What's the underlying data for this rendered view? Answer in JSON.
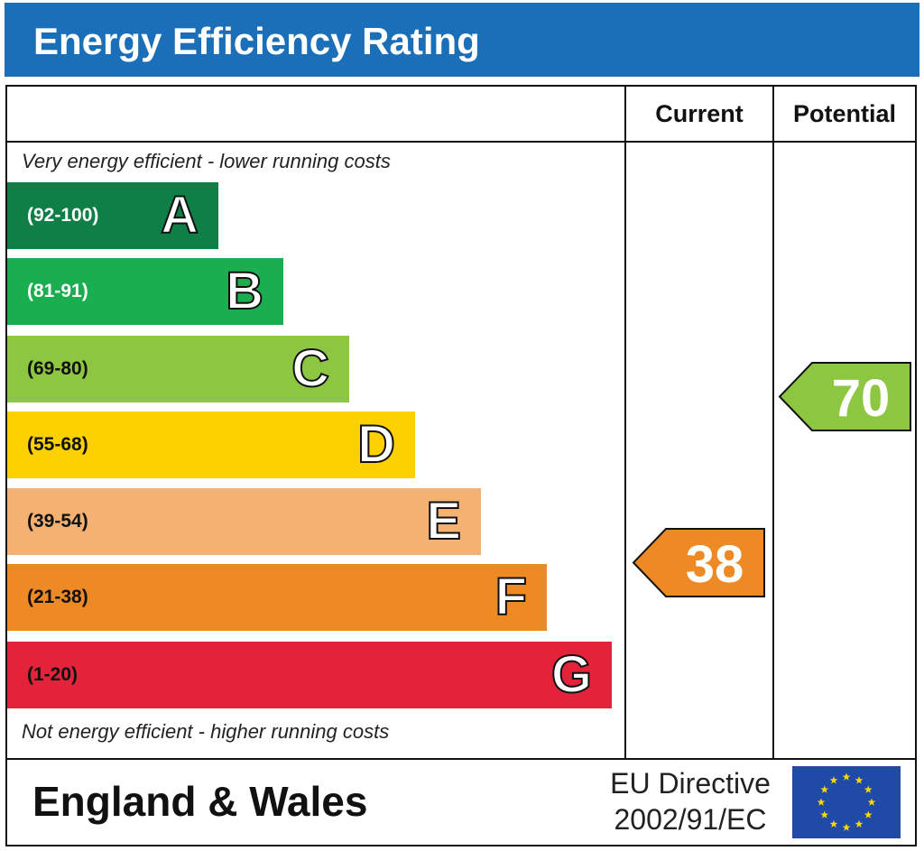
{
  "header": {
    "title": "Energy Efficiency Rating"
  },
  "columns": {
    "current": "Current",
    "potential": "Potential"
  },
  "notes": {
    "top": "Very energy efficient - lower running costs",
    "bottom": "Not energy efficient - higher running costs"
  },
  "footer": {
    "region": "England & Wales",
    "directive_line1": "EU Directive",
    "directive_line2": "2002/91/EC",
    "flag_icon": "eu-flag-icon"
  },
  "chart_data": {
    "type": "bar",
    "categories": [
      "A",
      "B",
      "C",
      "D",
      "E",
      "F",
      "G"
    ],
    "bands": [
      {
        "letter": "A",
        "range": "(92-100)",
        "min": 92,
        "max": 100,
        "color": "#0f7f47",
        "range_color": "#ffffff"
      },
      {
        "letter": "B",
        "range": "(81-91)",
        "min": 81,
        "max": 91,
        "color": "#1aae50",
        "range_color": "#ffffff"
      },
      {
        "letter": "C",
        "range": "(69-80)",
        "min": 69,
        "max": 80,
        "color": "#8dc641",
        "range_color": "#111111"
      },
      {
        "letter": "D",
        "range": "(55-68)",
        "min": 55,
        "max": 68,
        "color": "#fdd000",
        "range_color": "#111111"
      },
      {
        "letter": "E",
        "range": "(39-54)",
        "min": 39,
        "max": 54,
        "color": "#f5b172",
        "range_color": "#111111"
      },
      {
        "letter": "F",
        "range": "(21-38)",
        "min": 21,
        "max": 38,
        "color": "#ee8a26",
        "range_color": "#111111"
      },
      {
        "letter": "G",
        "range": "(1-20)",
        "min": 1,
        "max": 20,
        "color": "#e2233a",
        "range_color": "#111111"
      }
    ],
    "current": {
      "value": 38,
      "band": "F",
      "color": "#ee8a26"
    },
    "potential": {
      "value": 70,
      "band": "C",
      "color": "#8dc641"
    }
  }
}
